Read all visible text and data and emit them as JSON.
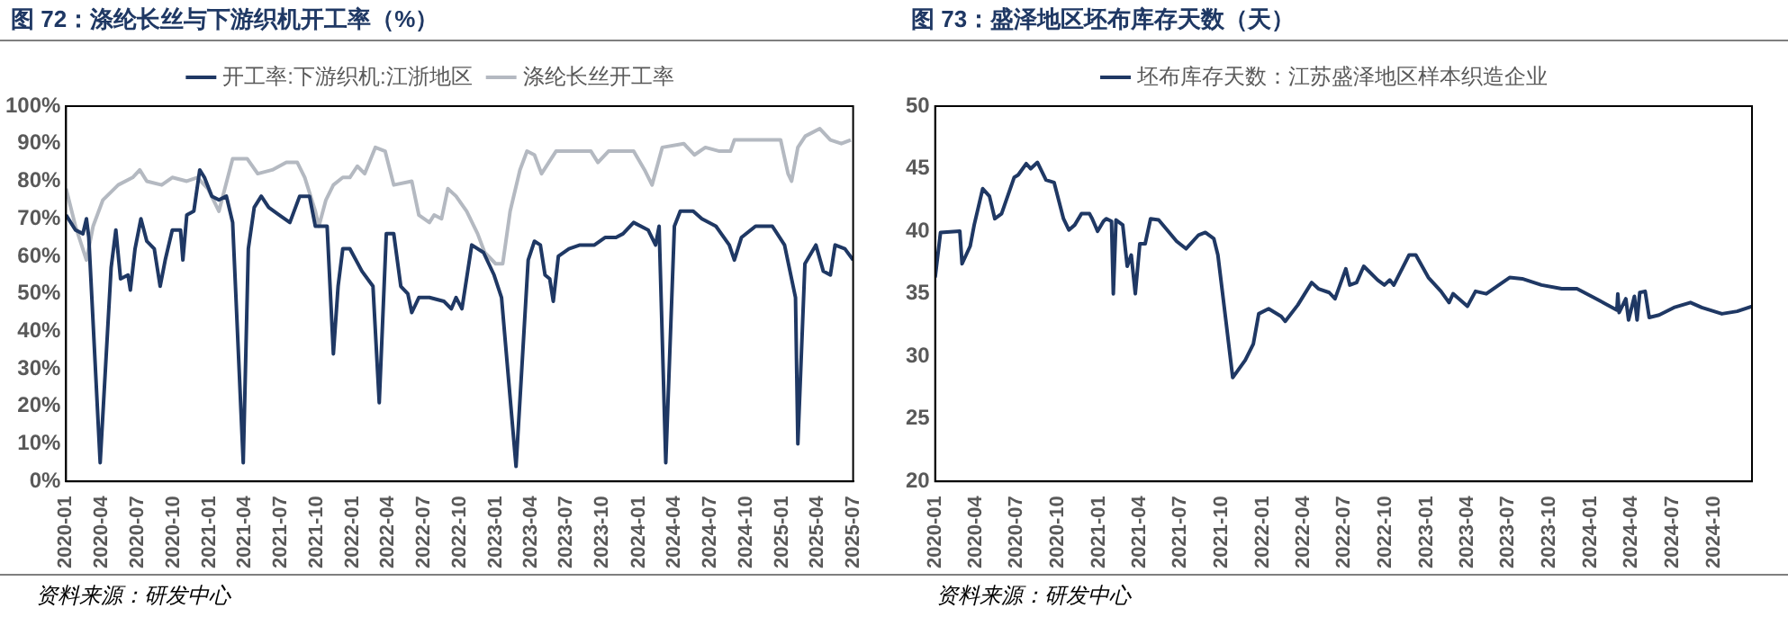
{
  "chart_data": [
    {
      "type": "line",
      "title": "图 72：涤纶长丝与下游织机开工率（%）",
      "annotations": [
        "资料来源：研发中心"
      ],
      "legend": "top",
      "xlim": [
        "2020-01",
        "2025-07"
      ],
      "xticks": [
        "2020-01",
        "2020-04",
        "2020-07",
        "2020-10",
        "2021-01",
        "2021-04",
        "2021-07",
        "2021-10",
        "2022-01",
        "2022-04",
        "2022-07",
        "2022-10",
        "2023-01",
        "2023-04",
        "2023-07",
        "2023-10",
        "2024-01",
        "2024-04",
        "2024-07",
        "2024-10",
        "2025-01",
        "2025-04",
        "2025-07"
      ],
      "ylim": [
        0,
        100
      ],
      "yticks": [
        {
          "value": 0,
          "label": "0%"
        },
        {
          "value": 10,
          "label": "10%"
        },
        {
          "value": 20,
          "label": "20%"
        },
        {
          "value": 30,
          "label": "30%"
        },
        {
          "value": 40,
          "label": "40%"
        },
        {
          "value": 50,
          "label": "50%"
        },
        {
          "value": 60,
          "label": "60%"
        },
        {
          "value": 70,
          "label": "70%"
        },
        {
          "value": 80,
          "label": "80%"
        },
        {
          "value": 90,
          "label": "90%"
        },
        {
          "value": 100,
          "label": "100%"
        }
      ],
      "grid": false,
      "series": [
        {
          "name": "开工率:下游织机:江浙地区",
          "color": "#1f3864",
          "x": [
            "2020-01-01",
            "2020-01-25",
            "2020-02-13",
            "2020-02-22",
            "2020-02-28",
            "2020-03-28",
            "2020-04-25",
            "2020-05-07",
            "2020-05-19",
            "2020-06-07",
            "2020-06-13",
            "2020-06-25",
            "2020-07-10",
            "2020-07-25",
            "2020-08-13",
            "2020-08-28",
            "2020-09-10",
            "2020-09-28",
            "2020-10-19",
            "2020-10-25",
            "2020-11-04",
            "2020-11-22",
            "2020-12-07",
            "2020-12-19",
            "2021-01-07",
            "2021-01-25",
            "2021-02-13",
            "2021-03-01",
            "2021-03-28",
            "2021-04-10",
            "2021-04-25",
            "2021-05-13",
            "2021-06-01",
            "2021-06-28",
            "2021-07-25",
            "2021-08-19",
            "2021-09-13",
            "2021-09-28",
            "2021-10-28",
            "2021-11-13",
            "2021-11-25",
            "2021-12-07",
            "2021-12-25",
            "2022-01-25",
            "2022-02-22",
            "2022-03-10",
            "2022-03-28",
            "2022-04-16",
            "2022-05-04",
            "2022-05-22",
            "2022-06-01",
            "2022-06-19",
            "2022-07-16",
            "2022-08-22",
            "2022-09-10",
            "2022-09-22",
            "2022-10-07",
            "2022-11-01",
            "2022-12-01",
            "2022-12-28",
            "2023-01-16",
            "2023-02-22",
            "2023-03-25",
            "2023-04-10",
            "2023-04-25",
            "2023-05-07",
            "2023-05-19",
            "2023-05-28",
            "2023-06-10",
            "2023-07-07",
            "2023-08-04",
            "2023-09-10",
            "2023-10-07",
            "2023-11-04",
            "2023-11-22",
            "2023-12-19",
            "2024-01-25",
            "2024-02-13",
            "2024-02-22",
            "2024-03-10",
            "2024-04-01",
            "2024-04-16",
            "2024-05-19",
            "2024-06-10",
            "2024-07-16",
            "2024-08-19",
            "2024-09-01",
            "2024-09-19",
            "2024-10-25",
            "2024-12-07",
            "2025-01-07",
            "2025-02-04",
            "2025-02-10",
            "2025-02-28",
            "2025-03-28",
            "2025-04-16",
            "2025-05-04",
            "2025-05-16",
            "2025-06-10",
            "2025-07-01"
          ],
          "values": [
            71,
            67,
            66,
            70,
            65,
            5,
            57,
            67,
            54,
            55,
            51,
            62,
            70,
            64,
            62,
            52,
            59,
            67,
            67,
            59,
            71,
            72,
            83,
            81,
            76,
            75,
            76,
            69,
            5,
            62,
            73,
            76,
            73,
            71,
            69,
            76,
            76,
            68,
            68,
            34,
            52,
            62,
            62,
            56,
            52,
            21,
            66,
            66,
            52,
            50,
            45,
            49,
            49,
            48,
            46,
            49,
            46,
            63,
            61,
            55,
            49,
            4,
            59,
            64,
            63,
            55,
            54,
            48,
            60,
            62,
            63,
            63,
            65,
            65,
            66,
            69,
            67,
            63,
            68,
            5,
            68,
            72,
            72,
            70,
            68,
            63,
            59,
            65,
            68,
            68,
            63,
            49,
            10,
            58,
            63,
            56,
            55,
            63,
            62,
            59
          ]
        },
        {
          "name": "涤纶长丝开工率",
          "color": "#b4b9c1",
          "x": [
            "2020-01-01",
            "2020-01-25",
            "2020-02-22",
            "2020-03-10",
            "2020-04-04",
            "2020-05-13",
            "2020-06-19",
            "2020-07-07",
            "2020-07-25",
            "2020-09-01",
            "2020-09-28",
            "2020-11-04",
            "2020-12-01",
            "2020-12-28",
            "2021-01-25",
            "2021-02-04",
            "2021-03-01",
            "2021-04-07",
            "2021-05-04",
            "2021-06-10",
            "2021-07-16",
            "2021-08-13",
            "2021-09-01",
            "2021-09-28",
            "2021-10-07",
            "2021-10-25",
            "2021-11-13",
            "2021-12-07",
            "2021-12-25",
            "2022-01-13",
            "2022-02-01",
            "2022-02-28",
            "2022-03-25",
            "2022-04-16",
            "2022-06-01",
            "2022-06-19",
            "2022-07-16",
            "2022-07-28",
            "2022-08-16",
            "2022-09-01",
            "2022-09-22",
            "2022-10-19",
            "2022-11-16",
            "2022-12-04",
            "2023-01-01",
            "2023-01-19",
            "2023-02-07",
            "2023-03-04",
            "2023-03-22",
            "2023-04-10",
            "2023-04-28",
            "2023-06-04",
            "2023-07-07",
            "2023-09-01",
            "2023-09-19",
            "2023-10-16",
            "2023-12-19",
            "2024-01-16",
            "2024-02-04",
            "2024-03-01",
            "2024-04-25",
            "2024-05-22",
            "2024-06-19",
            "2024-07-25",
            "2024-08-22",
            "2024-09-01",
            "2024-10-07",
            "2024-12-28",
            "2025-01-16",
            "2025-01-25",
            "2025-02-10",
            "2025-03-01",
            "2025-04-07",
            "2025-05-04",
            "2025-06-01",
            "2025-06-25"
          ],
          "values": [
            78,
            68,
            59,
            68,
            75,
            79,
            81,
            83,
            80,
            79,
            81,
            80,
            81,
            78,
            72,
            76,
            86,
            86,
            82,
            83,
            85,
            85,
            81,
            72,
            68,
            75,
            79,
            81,
            81,
            84,
            82,
            89,
            88,
            79,
            80,
            71,
            69,
            71,
            70,
            78,
            76,
            72,
            66,
            61,
            58,
            58,
            72,
            83,
            88,
            87,
            82,
            88,
            88,
            88,
            85,
            88,
            88,
            83,
            79,
            89,
            90,
            87,
            89,
            88,
            88,
            91,
            91,
            91,
            82,
            80,
            89,
            92,
            94,
            91,
            90,
            91
          ]
        }
      ]
    },
    {
      "type": "line",
      "title": "图 73：盛泽地区坯布库存天数（天）",
      "annotations": [
        "资料来源：研发中心"
      ],
      "legend": "top",
      "xlim": [
        "2020-01",
        "2024-12-25"
      ],
      "xticks": [
        "2020-01",
        "2020-04",
        "2020-07",
        "2020-10",
        "2021-01",
        "2021-04",
        "2021-07",
        "2021-10",
        "2022-01",
        "2022-04",
        "2022-07",
        "2022-10",
        "2023-01",
        "2023-04",
        "2023-07",
        "2023-10",
        "2024-01",
        "2024-04",
        "2024-07",
        "2024-10"
      ],
      "ylim": [
        20,
        50
      ],
      "yticks": [
        20,
        25,
        30,
        35,
        40,
        45,
        50
      ],
      "grid": false,
      "series": [
        {
          "name": "坯布库存天数：江苏盛泽地区样本织造企业",
          "color": "#1f3864",
          "x": [
            "2020-01-01",
            "2020-01-13",
            "2020-02-25",
            "2020-03-01",
            "2020-03-19",
            "2020-03-28",
            "2020-04-16",
            "2020-05-01",
            "2020-05-13",
            "2020-05-28",
            "2020-06-25",
            "2020-07-04",
            "2020-07-22",
            "2020-08-01",
            "2020-08-16",
            "2020-09-04",
            "2020-09-22",
            "2020-10-13",
            "2020-10-25",
            "2020-11-07",
            "2020-11-22",
            "2020-12-10",
            "2020-12-16",
            "2020-12-28",
            "2021-01-10",
            "2021-01-16",
            "2021-01-28",
            "2021-02-01",
            "2021-02-07",
            "2021-02-22",
            "2021-03-04",
            "2021-03-13",
            "2021-03-22",
            "2021-04-01",
            "2021-04-13",
            "2021-04-25",
            "2021-05-13",
            "2021-06-01",
            "2021-06-22",
            "2021-07-13",
            "2021-08-10",
            "2021-08-25",
            "2021-09-13",
            "2021-09-22",
            "2021-10-10",
            "2021-10-25",
            "2021-11-22",
            "2021-12-10",
            "2021-12-22",
            "2022-01-13",
            "2022-02-10",
            "2022-02-19",
            "2022-03-19",
            "2022-04-19",
            "2022-05-04",
            "2022-05-28",
            "2022-06-10",
            "2022-07-04",
            "2022-07-13",
            "2022-07-28",
            "2022-08-13",
            "2022-09-13",
            "2022-09-28",
            "2022-10-10",
            "2022-10-19",
            "2022-11-22",
            "2022-12-07",
            "2023-01-04",
            "2023-02-01",
            "2023-02-19",
            "2023-02-28",
            "2023-03-13",
            "2023-04-01",
            "2023-04-19",
            "2023-05-13",
            "2023-06-10",
            "2023-07-04",
            "2023-08-01",
            "2023-09-13",
            "2023-10-28",
            "2023-12-01",
            "2024-01-13",
            "2024-02-28",
            "2024-03-01",
            "2024-03-04",
            "2024-03-19",
            "2024-03-25",
            "2024-04-07",
            "2024-04-13",
            "2024-04-19",
            "2024-05-01",
            "2024-05-10",
            "2024-06-01",
            "2024-07-04",
            "2024-08-10",
            "2024-09-04",
            "2024-10-19",
            "2024-11-22",
            "2024-12-25"
          ],
          "values": [
            36.3,
            39.9,
            40,
            37.4,
            38.8,
            40.5,
            43.4,
            42.8,
            41,
            41.4,
            44.3,
            44.5,
            45.4,
            45,
            45.5,
            44.1,
            43.9,
            41,
            40.1,
            40.5,
            41.4,
            41.4,
            41,
            40,
            40.8,
            41,
            40.8,
            35,
            40.9,
            40.5,
            37.2,
            38.1,
            35,
            39,
            39,
            41,
            40.9,
            40.1,
            39.2,
            38.6,
            39.7,
            39.9,
            39.4,
            38.1,
            32.8,
            28.3,
            29.7,
            31,
            33.4,
            33.8,
            33.2,
            32.8,
            34.1,
            35.9,
            35.4,
            35.1,
            34.6,
            37,
            35.7,
            35.9,
            37.2,
            36.1,
            35.7,
            36.1,
            35.7,
            38.1,
            38.1,
            36.3,
            35.2,
            34.3,
            35,
            34.6,
            34,
            35.2,
            35,
            35.7,
            36.3,
            36.2,
            35.7,
            35.4,
            35.4,
            34.6,
            33.7,
            35,
            33.5,
            34.6,
            32.9,
            34.8,
            32.9,
            35.1,
            35.2,
            33.1,
            33.3,
            33.9,
            34.3,
            33.9,
            33.4,
            33.6,
            34
          ]
        }
      ]
    }
  ]
}
